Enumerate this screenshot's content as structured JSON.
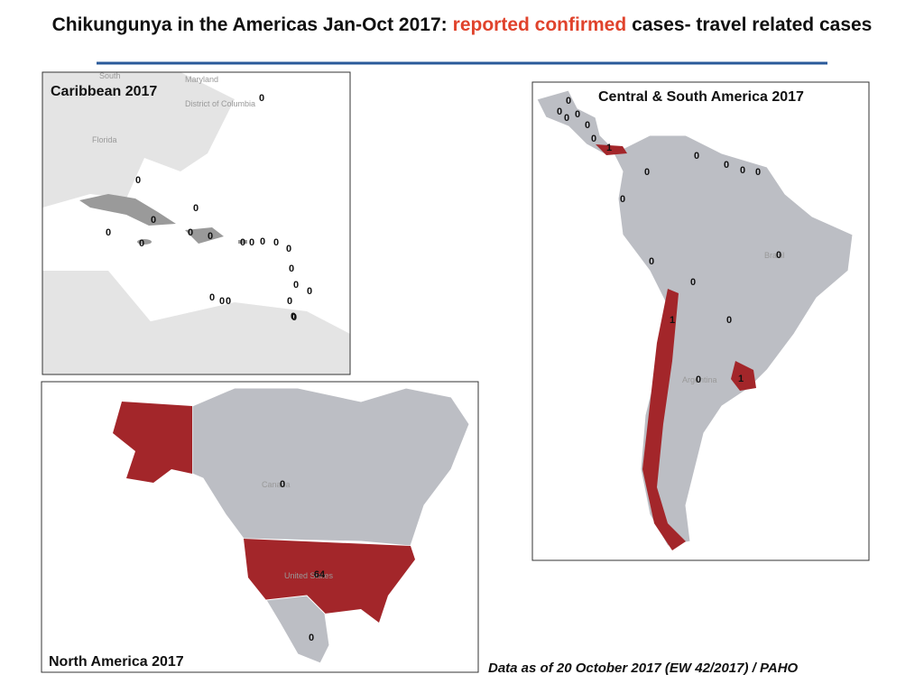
{
  "title": {
    "prefix": "Chikungunya in the Americas Jan-Oct 2017:",
    "highlight": "reported confirmed",
    "suffix": "cases- travel related cases"
  },
  "panels": [
    {
      "title": "Caribbean 2017",
      "place_labels": [
        "South",
        "Maryland",
        "District of Columbia",
        "Florida"
      ],
      "counts": [
        0,
        0,
        0,
        0,
        0,
        0,
        0,
        0,
        0,
        0,
        0,
        0,
        0,
        0,
        0,
        0,
        0,
        0,
        0,
        0,
        0,
        0
      ]
    },
    {
      "title": "Central & South America  2017",
      "place_labels": [
        "Brazil",
        "Argentina"
      ],
      "counts": [
        0,
        0,
        0,
        0,
        0,
        0,
        1,
        0,
        0,
        0,
        0,
        0,
        0,
        0,
        0,
        0,
        1,
        0,
        0,
        1
      ]
    },
    {
      "title": "North America  2017",
      "place_labels": [
        "Canada",
        "United States"
      ],
      "counts": [
        0,
        64,
        0
      ]
    }
  ],
  "footnote": "Data as of 20 October 2017 (EW 42/2017) / PAHO"
}
